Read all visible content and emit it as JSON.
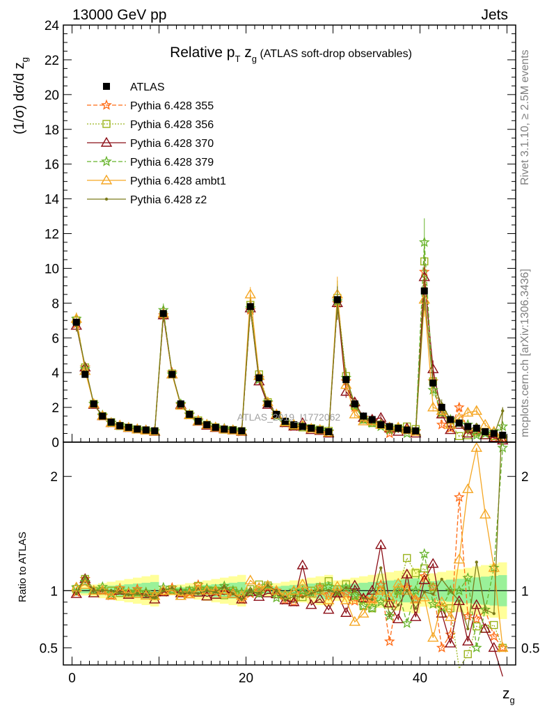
{
  "header": {
    "energy_label": "13000 GeV pp",
    "process_label": "Jets",
    "side_rivet": "Rivet 3.1.10, ≥ 2.5M events",
    "side_mcplots": "mcplots.cern.ch [arXiv:1306.3436]"
  },
  "chart_data": {
    "type": "scatter",
    "title_prefix": "Relative p",
    "title_sub1": "T",
    "title_mid": " z",
    "title_sub2": "g",
    "title_suffix": " (ATLAS soft-drop observables)",
    "watermark": "ATLAS_2019_I1772062",
    "ylabel": "(1/σ) dσ/d z",
    "ylabel_sub": "g",
    "xlabel": "z",
    "xlabel_sub": "g",
    "ratio_ylabel": "Ratio to ATLAS",
    "xlim": [
      -1,
      51
    ],
    "ylim": [
      0,
      24
    ],
    "ratio_ylim": [
      0.35,
      2.3
    ],
    "main_ticks": [
      "0",
      "2",
      "4",
      "6",
      "8",
      "10",
      "12",
      "14",
      "16",
      "18",
      "20",
      "22",
      "24"
    ],
    "x_ticks": [
      "0",
      "20",
      "40"
    ],
    "ratio_ticks": [
      "0.5",
      "1",
      "2"
    ],
    "x": [
      0.5,
      1.5,
      2.5,
      3.5,
      4.5,
      5.5,
      6.5,
      7.5,
      8.5,
      9.5,
      10.5,
      11.5,
      12.5,
      13.5,
      14.5,
      15.5,
      16.5,
      17.5,
      18.5,
      19.5,
      20.5,
      21.5,
      22.5,
      23.5,
      24.5,
      25.5,
      26.5,
      27.5,
      28.5,
      29.5,
      30.5,
      31.5,
      32.5,
      33.5,
      34.5,
      35.5,
      36.5,
      37.5,
      38.5,
      39.5,
      40.5,
      41.5,
      42.5,
      43.5,
      44.5,
      45.5,
      46.5,
      47.5,
      48.5,
      49.5
    ],
    "atlas": [
      6.9,
      3.9,
      2.2,
      1.5,
      1.15,
      0.95,
      0.85,
      0.75,
      0.7,
      0.65,
      7.4,
      3.9,
      2.2,
      1.6,
      1.2,
      1.0,
      0.85,
      0.75,
      0.7,
      0.65,
      7.8,
      3.7,
      2.2,
      1.6,
      1.2,
      1.0,
      0.9,
      0.8,
      0.7,
      0.6,
      8.2,
      3.6,
      2.2,
      1.5,
      1.3,
      1.0,
      0.9,
      0.8,
      0.7,
      0.65,
      8.7,
      3.4,
      2.0,
      1.3,
      1.1,
      0.9,
      0.8,
      0.6,
      0.5,
      0.4
    ],
    "series": [
      {
        "name": "Pythia 6.428 355",
        "color": "#ff6a13",
        "marker": "star",
        "dash": "6,3",
        "values": [
          6.8,
          4.3,
          2.2,
          1.5,
          1.1,
          0.97,
          0.84,
          0.76,
          0.69,
          0.63,
          7.3,
          4.0,
          2.15,
          1.57,
          1.26,
          1.0,
          0.84,
          0.76,
          0.69,
          0.6,
          7.6,
          3.7,
          2.25,
          1.6,
          1.1,
          0.9,
          0.88,
          0.78,
          0.72,
          0.58,
          8.0,
          3.5,
          2.0,
          1.4,
          1.2,
          1.05,
          0.5,
          0.8,
          0.72,
          0.6,
          9.8,
          3.5,
          1.0,
          0.8,
          2.0,
          0.7,
          0.6,
          0.5,
          0.3,
          0.2
        ]
      },
      {
        "name": "Pythia 6.428 356",
        "color": "#99b31a",
        "marker": "square",
        "dash": "2,2",
        "values": [
          7.0,
          4.3,
          2.2,
          1.5,
          1.15,
          0.93,
          0.83,
          0.74,
          0.68,
          0.62,
          7.3,
          3.95,
          2.1,
          1.6,
          1.25,
          1.0,
          0.85,
          0.72,
          0.7,
          0.63,
          7.9,
          3.9,
          2.3,
          1.55,
          1.15,
          0.93,
          0.85,
          0.8,
          0.72,
          0.65,
          8.3,
          3.8,
          2.1,
          1.3,
          1.1,
          1.0,
          0.8,
          0.8,
          0.9,
          0.75,
          10.4,
          3.5,
          1.6,
          1.1,
          0.35,
          0.4,
          0.55,
          0.4,
          0.35,
          0.2
        ]
      },
      {
        "name": "Pythia 6.428 370",
        "color": "#8b0d16",
        "marker": "triangle",
        "dash": "",
        "values": [
          6.7,
          4.3,
          2.15,
          1.5,
          1.1,
          0.95,
          0.82,
          0.73,
          0.68,
          0.6,
          7.3,
          3.9,
          2.15,
          1.55,
          1.18,
          0.95,
          0.82,
          0.75,
          0.68,
          0.6,
          7.7,
          3.5,
          2.15,
          1.55,
          1.1,
          0.9,
          1.1,
          0.7,
          0.65,
          0.5,
          8.0,
          2.9,
          2.3,
          1.4,
          1.3,
          1.4,
          0.8,
          0.6,
          0.8,
          0.5,
          9.5,
          4.2,
          1.6,
          0.7,
          1.0,
          0.5,
          0.7,
          0.4,
          0.25,
          0.1
        ]
      },
      {
        "name": "Pythia 6.428 379",
        "color": "#66b32a",
        "marker": "star",
        "dash": "6,3",
        "values": [
          7.1,
          4.2,
          2.2,
          1.55,
          1.12,
          0.96,
          0.84,
          0.74,
          0.69,
          0.62,
          7.6,
          3.9,
          2.2,
          1.6,
          1.2,
          1.02,
          0.86,
          0.78,
          0.7,
          0.64,
          7.7,
          3.6,
          2.3,
          1.5,
          1.15,
          1.0,
          0.9,
          0.78,
          0.7,
          0.62,
          8.1,
          3.7,
          2.1,
          1.3,
          1.1,
          0.9,
          0.7,
          0.8,
          0.5,
          0.65,
          11.5,
          3.0,
          1.7,
          1.3,
          1.1,
          1.0,
          0.4,
          0.5,
          0.6,
          0.9
        ]
      },
      {
        "name": "Pythia 6.428 ambt1",
        "color": "#f5a623",
        "marker": "triangle",
        "dash": "",
        "values": [
          7.1,
          4.1,
          2.2,
          1.5,
          1.1,
          0.96,
          0.83,
          0.73,
          0.67,
          0.62,
          7.4,
          3.9,
          2.1,
          1.55,
          1.2,
          1.0,
          0.85,
          0.73,
          0.68,
          0.62,
          8.5,
          3.8,
          2.3,
          1.6,
          1.15,
          1.0,
          0.95,
          0.78,
          0.7,
          0.55,
          8.5,
          3.3,
          1.6,
          1.2,
          1.2,
          1.0,
          0.85,
          0.85,
          0.7,
          0.6,
          8.2,
          2.0,
          1.8,
          1.0,
          1.4,
          1.7,
          1.8,
          1.0,
          0.6,
          0.2
        ]
      },
      {
        "name": "Pythia 6.428 z2",
        "color": "#7a7a1a",
        "marker": "dot",
        "dash": "",
        "values": [
          6.7,
          4.4,
          2.2,
          1.5,
          1.15,
          0.93,
          0.82,
          0.73,
          0.67,
          0.61,
          7.4,
          4.0,
          2.15,
          1.57,
          1.17,
          1.0,
          0.84,
          0.78,
          0.68,
          0.6,
          7.8,
          3.6,
          2.3,
          1.6,
          1.1,
          0.95,
          0.85,
          0.78,
          0.7,
          0.6,
          8.0,
          3.7,
          2.2,
          1.4,
          1.2,
          1.2,
          0.7,
          0.7,
          0.7,
          0.55,
          8.6,
          3.3,
          2.2,
          1.3,
          1.0,
          0.6,
          1.0,
          0.5,
          0.4,
          1.8
        ]
      }
    ]
  }
}
